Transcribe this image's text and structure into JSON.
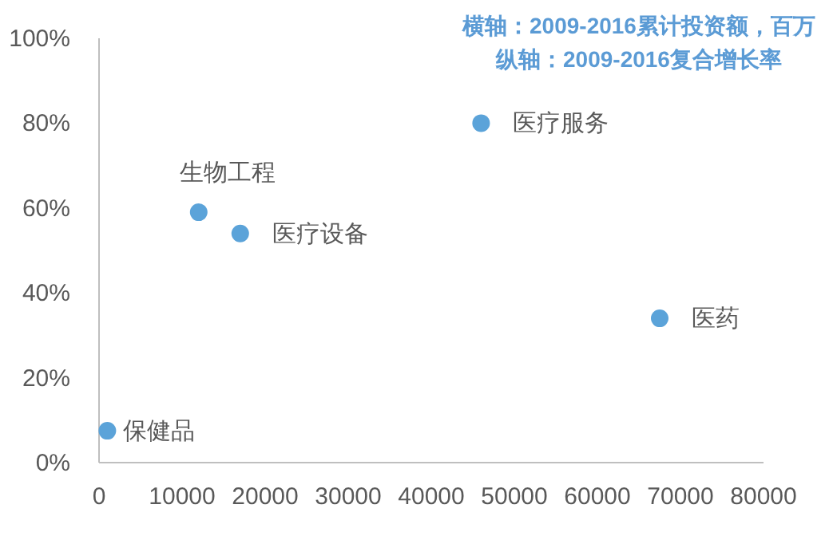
{
  "chart_data": {
    "type": "scatter",
    "color": "#5ba3d9",
    "marker": "circle",
    "grid": false,
    "x": [
      1000,
      12000,
      17000,
      46000,
      67500
    ],
    "values": [
      7.5,
      59,
      54,
      80,
      34
    ],
    "xlim": [
      0,
      80000
    ],
    "xticks": [
      0,
      10000,
      20000,
      30000,
      40000,
      50000,
      60000,
      70000,
      80000
    ],
    "ylim": [
      0,
      100
    ],
    "yticks": [
      {
        "value": 0,
        "label": "0%"
      },
      {
        "value": 20,
        "label": "20%"
      },
      {
        "value": 40,
        "label": "40%"
      },
      {
        "value": 60,
        "label": "60%"
      },
      {
        "value": 80,
        "label": "80%"
      },
      {
        "value": 100,
        "label": "100%"
      }
    ],
    "annotations": [
      "横轴：2009-2016累计投资额，百万",
      "纵轴：2009-2016复合增长率",
      {
        "text": "保健品",
        "x": 1000,
        "y": 7.5
      },
      {
        "text": "生物工程",
        "x": 12000,
        "y": 59
      },
      {
        "text": "医疗设备",
        "x": 17000,
        "y": 54
      },
      {
        "text": "医疗服务",
        "x": 46000,
        "y": 80
      },
      {
        "text": "医药",
        "x": 67500,
        "y": 34
      }
    ]
  }
}
